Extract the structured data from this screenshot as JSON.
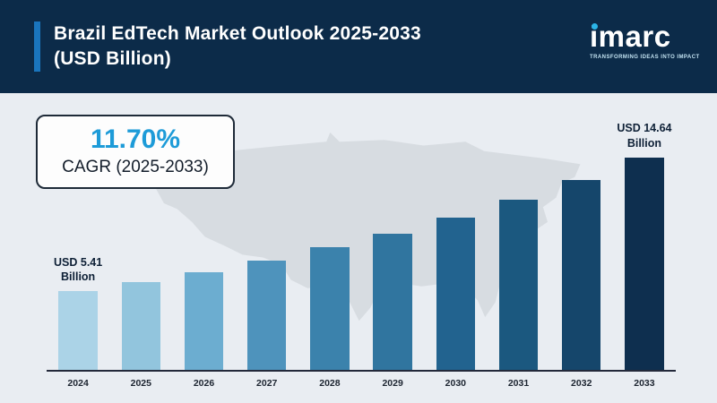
{
  "header": {
    "title_line1": "Brazil EdTech Market Outlook 2025-2033",
    "title_line2": "(USD Billion)",
    "logo_text": "imarc",
    "logo_tagline": "TRANSFORMING IDEAS INTO IMPACT"
  },
  "callout": {
    "cagr_value": "11.70%",
    "cagr_label": "CAGR (2025-2033)"
  },
  "annotations": {
    "first": {
      "line1": "USD 5.41",
      "line2": "Billion"
    },
    "last": {
      "line1": "USD 14.64",
      "line2": "Billion"
    }
  },
  "chart_data": {
    "type": "bar",
    "title": "Brazil EdTech Market Outlook 2025-2033 (USD Billion)",
    "categories": [
      "2024",
      "2025",
      "2026",
      "2027",
      "2028",
      "2029",
      "2030",
      "2031",
      "2032",
      "2033"
    ],
    "values": [
      5.41,
      6.04,
      6.75,
      7.54,
      8.43,
      9.41,
      10.51,
      11.74,
      13.11,
      14.64
    ],
    "bar_colors": [
      "#abd3e7",
      "#92c5dd",
      "#6cadd0",
      "#4e93bc",
      "#3b82ac",
      "#30759f",
      "#22638f",
      "#1b587f",
      "#15466b",
      "#0e2f4f"
    ],
    "xlabel": "",
    "ylabel": "USD Billion",
    "ylim": [
      0,
      16
    ],
    "grid": false,
    "legend": "none",
    "labeled_points": {
      "2024": "USD 5.41 Billion",
      "2033": "USD 14.64 Billion"
    }
  },
  "colors": {
    "header_bg": "#0c2b49",
    "accent_bar": "#1a75bd",
    "cagr_text": "#1d9bd8",
    "logo_dot": "#2ab5e8",
    "page_bg": "#e9edf2",
    "map_fill": "#d7dce1"
  }
}
